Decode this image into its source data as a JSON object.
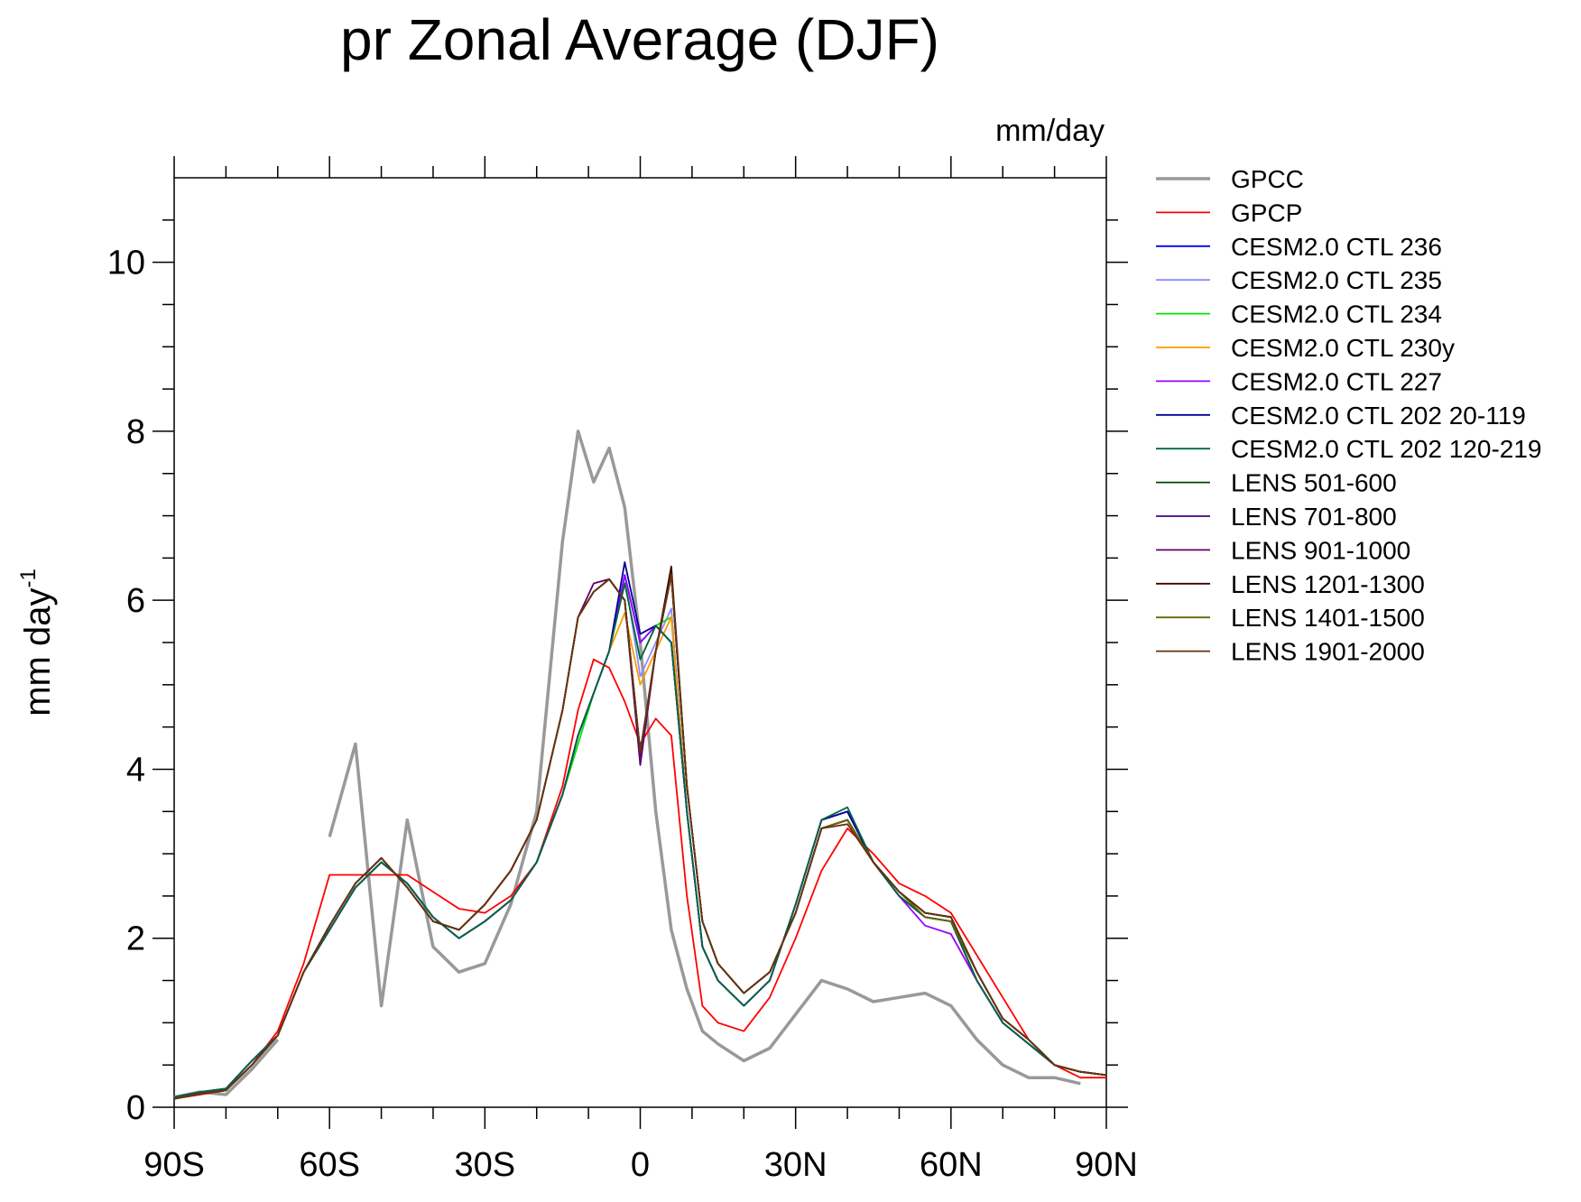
{
  "chart_data": {
    "type": "line",
    "title": "pr Zonal Average (DJF)",
    "units": "mm/day",
    "ylabel": "mm day",
    "ylabel_sup": "-1",
    "x": [
      -90,
      -85,
      -80,
      -75,
      -70,
      -65,
      -60,
      -55,
      -50,
      -45,
      -40,
      -35,
      -30,
      -25,
      -20,
      -15,
      -12,
      -9,
      -6,
      -3,
      0,
      3,
      6,
      9,
      12,
      15,
      20,
      25,
      30,
      35,
      40,
      45,
      50,
      55,
      60,
      65,
      70,
      75,
      80,
      85,
      90
    ],
    "xlim": [
      -90,
      90
    ],
    "xticks": [
      {
        "value": -90,
        "label": "90S"
      },
      {
        "value": -60,
        "label": "60S"
      },
      {
        "value": -30,
        "label": "30S"
      },
      0,
      {
        "value": 30,
        "label": "30N"
      },
      {
        "value": 60,
        "label": "60N"
      },
      {
        "value": 90,
        "label": "90N"
      }
    ],
    "xminorticks": [
      -80,
      -70,
      -50,
      -40,
      -20,
      -10,
      10,
      20,
      40,
      50,
      70,
      80
    ],
    "ylim": [
      0,
      11
    ],
    "yticks": [
      0,
      2,
      4,
      6,
      8,
      10
    ],
    "yminorticks": [
      0.5,
      1,
      1.5,
      2.5,
      3,
      3.5,
      4.5,
      5,
      5.5,
      6.5,
      7,
      7.5,
      8.5,
      9,
      9.5,
      10.5
    ],
    "legend": "right",
    "series": [
      {
        "name": "GPCC",
        "color": "#999999",
        "values": [
          0.12,
          0.18,
          0.15,
          0.45,
          0.8,
          null,
          3.2,
          4.3,
          1.2,
          3.4,
          1.9,
          1.6,
          1.7,
          2.4,
          3.5,
          6.7,
          8.0,
          7.4,
          7.8,
          7.1,
          5.5,
          3.5,
          2.1,
          1.4,
          0.9,
          0.75,
          0.55,
          0.7,
          1.1,
          1.5,
          1.4,
          1.25,
          1.3,
          1.35,
          1.2,
          0.8,
          0.5,
          0.35,
          0.35,
          0.28,
          null
        ]
      },
      {
        "name": "GPCP",
        "color": "#ff0000",
        "values": [
          0.1,
          0.15,
          0.2,
          0.5,
          0.9,
          1.7,
          2.75,
          2.75,
          2.75,
          2.75,
          2.55,
          2.35,
          2.3,
          2.5,
          2.9,
          3.8,
          4.7,
          5.3,
          5.2,
          4.8,
          4.3,
          4.6,
          4.4,
          2.5,
          1.2,
          1.0,
          0.9,
          1.3,
          2.0,
          2.8,
          3.3,
          3.0,
          2.65,
          2.5,
          2.3,
          1.8,
          1.3,
          0.8,
          0.5,
          0.35,
          0.35
        ]
      },
      {
        "name": "CESM2.0 CTL 236",
        "color": "#0000ff",
        "values": [
          0.12,
          0.18,
          0.22,
          0.55,
          0.85,
          1.6,
          2.1,
          2.6,
          2.9,
          2.65,
          2.25,
          2.0,
          2.2,
          2.45,
          2.9,
          3.7,
          4.4,
          4.9,
          5.4,
          6.3,
          5.5,
          5.7,
          5.5,
          3.5,
          1.9,
          1.5,
          1.2,
          1.5,
          2.4,
          3.4,
          3.5,
          2.9,
          2.5,
          2.25,
          2.2,
          1.5,
          1.0,
          0.75,
          0.5,
          0.42,
          0.38
        ]
      },
      {
        "name": "CESM2.0 CTL 235",
        "color": "#8c8cff",
        "values": [
          0.12,
          0.18,
          0.22,
          0.55,
          0.85,
          1.6,
          2.1,
          2.6,
          2.9,
          2.65,
          2.25,
          2.0,
          2.2,
          2.45,
          2.9,
          3.7,
          4.4,
          4.9,
          5.4,
          6.3,
          5.1,
          5.5,
          5.9,
          3.5,
          1.9,
          1.5,
          1.2,
          1.5,
          2.4,
          3.4,
          3.5,
          2.9,
          2.5,
          2.25,
          2.2,
          1.5,
          1.0,
          0.75,
          0.5,
          0.42,
          0.38
        ]
      },
      {
        "name": "CESM2.0 CTL 234",
        "color": "#00e600",
        "values": [
          0.12,
          0.18,
          0.22,
          0.55,
          0.85,
          1.6,
          2.1,
          2.6,
          2.9,
          2.65,
          2.25,
          2.0,
          2.2,
          2.45,
          2.9,
          3.7,
          4.3,
          4.9,
          5.4,
          6.2,
          5.3,
          5.7,
          5.8,
          3.5,
          1.9,
          1.5,
          1.2,
          1.5,
          2.4,
          3.4,
          3.5,
          2.9,
          2.5,
          2.25,
          2.2,
          1.5,
          1.0,
          0.75,
          0.5,
          0.42,
          0.38
        ]
      },
      {
        "name": "CESM2.0 CTL 230y",
        "color": "#ff9900",
        "values": [
          0.12,
          0.18,
          0.22,
          0.55,
          0.85,
          1.6,
          2.1,
          2.6,
          2.9,
          2.65,
          2.25,
          2.0,
          2.2,
          2.45,
          2.9,
          3.7,
          4.4,
          4.9,
          5.4,
          5.85,
          5.0,
          5.4,
          5.8,
          3.5,
          1.9,
          1.5,
          1.2,
          1.5,
          2.4,
          3.4,
          3.5,
          2.9,
          2.5,
          2.25,
          2.2,
          1.5,
          1.0,
          0.75,
          0.5,
          0.42,
          0.38
        ]
      },
      {
        "name": "CESM2.0 CTL 227",
        "color": "#9900ff",
        "values": [
          0.12,
          0.18,
          0.22,
          0.55,
          0.85,
          1.6,
          2.1,
          2.6,
          2.9,
          2.65,
          2.25,
          2.0,
          2.2,
          2.45,
          2.9,
          3.7,
          4.4,
          4.9,
          5.4,
          6.3,
          5.5,
          5.7,
          5.5,
          3.5,
          1.9,
          1.5,
          1.2,
          1.5,
          2.4,
          3.4,
          3.5,
          2.9,
          2.5,
          2.15,
          2.05,
          1.5,
          1.0,
          0.75,
          0.5,
          0.42,
          0.38
        ]
      },
      {
        "name": "CESM2.0 CTL 202 20-119",
        "color": "#000099",
        "values": [
          0.12,
          0.18,
          0.22,
          0.55,
          0.85,
          1.6,
          2.1,
          2.6,
          2.9,
          2.65,
          2.25,
          2.0,
          2.2,
          2.45,
          2.9,
          3.7,
          4.4,
          4.9,
          5.4,
          6.45,
          5.6,
          5.7,
          5.5,
          3.5,
          1.9,
          1.5,
          1.2,
          1.5,
          2.4,
          3.4,
          3.5,
          2.9,
          2.5,
          2.25,
          2.2,
          1.5,
          1.0,
          0.75,
          0.5,
          0.42,
          0.38
        ]
      },
      {
        "name": "CESM2.0 CTL 202 120-219",
        "color": "#006644",
        "values": [
          0.12,
          0.18,
          0.22,
          0.55,
          0.85,
          1.6,
          2.1,
          2.6,
          2.9,
          2.65,
          2.25,
          2.0,
          2.2,
          2.45,
          2.9,
          3.7,
          4.4,
          4.9,
          5.4,
          6.2,
          5.3,
          5.7,
          5.5,
          3.5,
          1.9,
          1.5,
          1.2,
          1.5,
          2.4,
          3.4,
          3.55,
          2.9,
          2.5,
          2.25,
          2.2,
          1.5,
          1.0,
          0.75,
          0.5,
          0.42,
          0.38
        ]
      },
      {
        "name": "LENS 501-600",
        "color": "#004400",
        "values": [
          0.1,
          0.16,
          0.2,
          0.5,
          0.85,
          1.6,
          2.15,
          2.65,
          2.95,
          2.6,
          2.2,
          2.1,
          2.4,
          2.8,
          3.4,
          4.7,
          5.8,
          6.1,
          6.25,
          6.0,
          4.2,
          5.4,
          6.3,
          3.8,
          2.2,
          1.7,
          1.35,
          1.6,
          2.3,
          3.3,
          3.4,
          2.9,
          2.55,
          2.3,
          2.25,
          1.6,
          1.05,
          0.8,
          0.5,
          0.42,
          0.38
        ]
      },
      {
        "name": "LENS 701-800",
        "color": "#440088",
        "values": [
          0.1,
          0.16,
          0.2,
          0.5,
          0.85,
          1.6,
          2.15,
          2.65,
          2.95,
          2.6,
          2.2,
          2.1,
          2.4,
          2.8,
          3.4,
          4.7,
          5.8,
          6.1,
          6.25,
          6.0,
          4.05,
          5.4,
          6.3,
          3.8,
          2.2,
          1.7,
          1.35,
          1.6,
          2.3,
          3.3,
          3.4,
          2.9,
          2.55,
          2.3,
          2.25,
          1.6,
          1.05,
          0.8,
          0.5,
          0.42,
          0.38
        ]
      },
      {
        "name": "LENS 901-1000",
        "color": "#660066",
        "values": [
          0.1,
          0.16,
          0.2,
          0.5,
          0.85,
          1.6,
          2.15,
          2.65,
          2.95,
          2.6,
          2.2,
          2.1,
          2.4,
          2.8,
          3.4,
          4.7,
          5.8,
          6.2,
          6.25,
          6.0,
          4.1,
          5.4,
          6.3,
          3.8,
          2.2,
          1.7,
          1.35,
          1.6,
          2.3,
          3.3,
          3.4,
          2.9,
          2.55,
          2.3,
          2.25,
          1.6,
          1.05,
          0.8,
          0.5,
          0.42,
          0.38
        ]
      },
      {
        "name": "LENS 1201-1300",
        "color": "#440000",
        "values": [
          0.1,
          0.16,
          0.2,
          0.5,
          0.85,
          1.6,
          2.15,
          2.65,
          2.95,
          2.6,
          2.2,
          2.1,
          2.4,
          2.8,
          3.4,
          4.7,
          5.8,
          6.1,
          6.25,
          6.0,
          4.2,
          5.4,
          6.4,
          3.8,
          2.2,
          1.7,
          1.35,
          1.6,
          2.3,
          3.3,
          3.4,
          2.9,
          2.55,
          2.3,
          2.25,
          1.6,
          1.05,
          0.8,
          0.5,
          0.42,
          0.38
        ]
      },
      {
        "name": "LENS 1401-1500",
        "color": "#666600",
        "values": [
          0.1,
          0.16,
          0.2,
          0.5,
          0.85,
          1.6,
          2.15,
          2.65,
          2.95,
          2.6,
          2.2,
          2.1,
          2.4,
          2.8,
          3.4,
          4.7,
          5.8,
          6.1,
          6.25,
          6.0,
          4.2,
          5.4,
          6.3,
          3.8,
          2.2,
          1.7,
          1.35,
          1.6,
          2.3,
          3.3,
          3.4,
          2.9,
          2.55,
          2.25,
          2.2,
          1.6,
          1.05,
          0.8,
          0.5,
          0.42,
          0.38
        ]
      },
      {
        "name": "LENS 1901-2000",
        "color": "#663311",
        "values": [
          0.1,
          0.16,
          0.2,
          0.5,
          0.85,
          1.6,
          2.15,
          2.65,
          2.95,
          2.6,
          2.2,
          2.1,
          2.4,
          2.8,
          3.4,
          4.7,
          5.8,
          6.1,
          6.25,
          6.0,
          4.2,
          5.4,
          6.3,
          3.8,
          2.2,
          1.7,
          1.35,
          1.6,
          2.3,
          3.3,
          3.35,
          2.9,
          2.55,
          2.3,
          2.25,
          1.6,
          1.05,
          0.8,
          0.5,
          0.42,
          0.38
        ]
      }
    ]
  }
}
